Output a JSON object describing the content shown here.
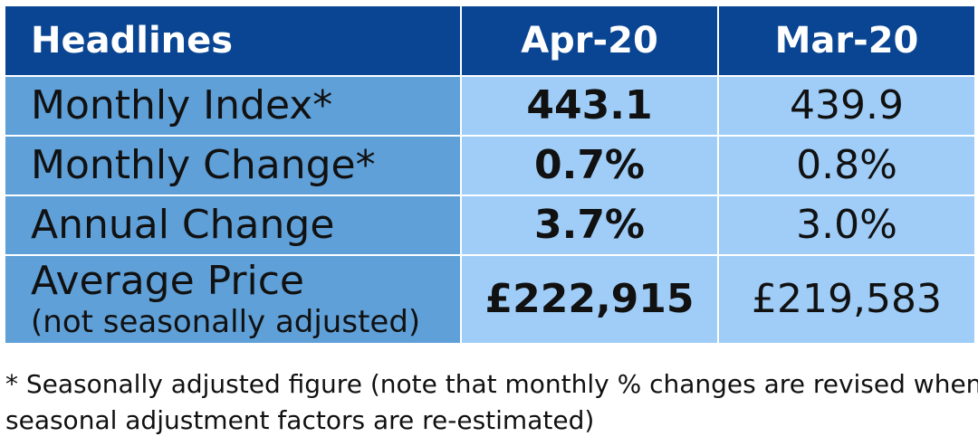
{
  "table": {
    "headers": [
      "Headlines",
      "Apr-20",
      "Mar-20"
    ],
    "rows": [
      {
        "label": "Monthly Index*",
        "sublabel": "",
        "apr": "443.1",
        "mar": "439.9"
      },
      {
        "label": "Monthly Change*",
        "sublabel": "",
        "apr": "0.7%",
        "mar": "0.8%"
      },
      {
        "label": "Annual Change",
        "sublabel": "",
        "apr": "3.7%",
        "mar": "3.0%"
      },
      {
        "label": "Average Price",
        "sublabel": "(not seasonally adjusted)",
        "apr": "£222,915",
        "mar": "£219,583"
      }
    ]
  },
  "footnote": {
    "line1": "* Seasonally adjusted figure (note that monthly % changes are revised when",
    "line2": "seasonal adjustment factors are re-estimated)"
  },
  "colors": {
    "header_bg": "#0a4593",
    "label_bg": "#5fa0d8",
    "value_bg": "#9fcdf8",
    "border": "#ffffff"
  }
}
